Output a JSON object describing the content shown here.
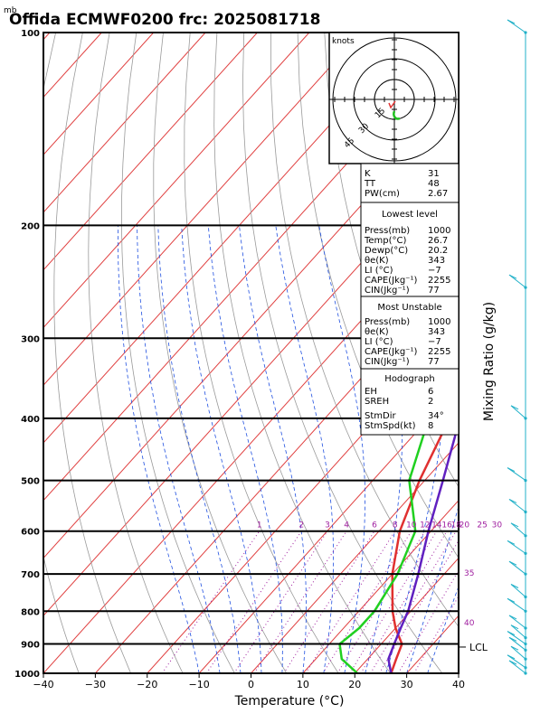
{
  "chart_data": {
    "type": "line",
    "title": "Offida ECMWF0200 frc: 2025081718",
    "pressure_unit_label": "mb",
    "xlabel": "Temperature (°C)",
    "ylabel_right": "Mixing Ratio (g/kg)",
    "x_ticks": [
      "−40",
      "−30",
      "−20",
      "−10",
      "0",
      "10",
      "20",
      "30",
      "40"
    ],
    "xlim": [
      -40,
      40
    ],
    "pressure_levels": [
      "100",
      "200",
      "300",
      "400",
      "500",
      "600",
      "700",
      "800",
      "900",
      "1000"
    ],
    "ylim_mb": [
      1000,
      100
    ],
    "series": [
      {
        "name": "Temperature",
        "color": "#e03030",
        "pressure": [
          1000,
          950,
          900,
          850,
          800,
          700,
          600,
          500,
          400,
          300,
          250,
          200,
          150,
          100
        ],
        "x": [
          27,
          25.5,
          24,
          20,
          16.5,
          10,
          4,
          -1,
          -6,
          -12,
          -16,
          -15,
          -12,
          -8
        ]
      },
      {
        "name": "Dewpoint",
        "color": "#20d020",
        "pressure": [
          1000,
          950,
          900,
          850,
          800,
          700,
          600,
          500,
          400,
          300,
          250,
          200,
          150,
          100
        ],
        "x": [
          20.5,
          15,
          12,
          13,
          13,
          11,
          7,
          -3,
          -10,
          -13,
          -13,
          -13,
          -12.5,
          -13
        ]
      },
      {
        "name": "Parcel",
        "color": "#6020c0",
        "pressure": [
          1000,
          950,
          900,
          850,
          800,
          700,
          600,
          500,
          400,
          300,
          250,
          200,
          150,
          125
        ],
        "x": [
          27,
          24,
          22.5,
          21,
          19.5,
          15,
          9.5,
          3.5,
          -4,
          -14,
          -20,
          -24,
          -28,
          -33
        ]
      }
    ],
    "lcl_label": "LCL",
    "lcl_pressure": 910,
    "mixing_ratio_labels": [
      "1",
      "2",
      "3",
      "4",
      "6",
      "8",
      "10",
      "12",
      "14",
      "16",
      "18",
      "20",
      "25",
      "30"
    ],
    "theta_labels": [
      "35",
      "40"
    ],
    "hodograph": {
      "unit_label": "knots",
      "ring_labels": [
        "15",
        "30",
        "45"
      ]
    },
    "indices": [
      {
        "label": "K",
        "value": "31"
      },
      {
        "label": "TT",
        "value": "48"
      },
      {
        "label": "PW(cm)",
        "value": "2.67"
      }
    ],
    "lowest_level": {
      "header": "Lowest level",
      "rows": [
        {
          "label": "Press(mb)",
          "value": "1000"
        },
        {
          "label": "Temp(°C)",
          "value": "26.7"
        },
        {
          "label": "Dewp(°C)",
          "value": "20.2"
        },
        {
          "label": "θe(K)",
          "value": "343"
        },
        {
          "label": "LI (°C)",
          "value": "−7"
        },
        {
          "label": "CAPE(Jkg⁻¹)",
          "value": "2255"
        },
        {
          "label": "CIN(Jkg⁻¹)",
          "value": "77"
        }
      ]
    },
    "most_unstable": {
      "header": "Most Unstable",
      "rows": [
        {
          "label": "Press(mb)",
          "value": "1000"
        },
        {
          "label": "θe(K)",
          "value": "343"
        },
        {
          "label": "LI (°C)",
          "value": "−7"
        },
        {
          "label": "CAPE(Jkg⁻¹)",
          "value": "2255"
        },
        {
          "label": "CIN(Jkg⁻¹)",
          "value": "77"
        }
      ]
    },
    "hodograph_table": {
      "header": "Hodograph",
      "rows": [
        {
          "label": "EH",
          "value": "6"
        },
        {
          "label": "SREH",
          "value": "2"
        },
        {
          "label": "StmDir",
          "value": "34°"
        },
        {
          "label": "StmSpd(kt)",
          "value": "8"
        }
      ]
    },
    "wind_levels_mb": [
      100,
      250,
      400,
      500,
      560,
      610,
      650,
      700,
      760,
      800,
      850,
      880,
      900,
      920,
      950,
      980,
      1000
    ],
    "colors": {
      "frame": "#000000",
      "isotherm": "#e04040",
      "dry_adiabat": "#9a9a9a",
      "moist_adiabat": "#2050e0",
      "mixing_ratio": "#a020a0",
      "wind": "#20b0c8"
    }
  }
}
